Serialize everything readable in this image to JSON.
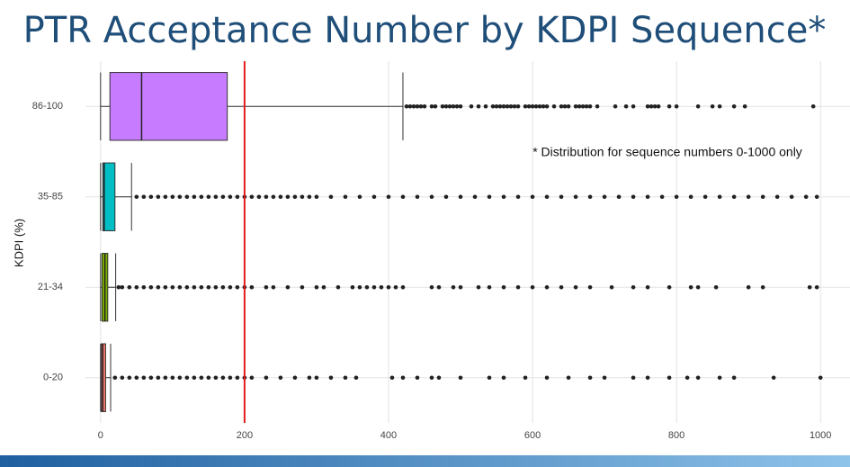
{
  "chart_data": {
    "type": "boxplot",
    "title": "PTR Acceptance Number by KDPI Sequence*",
    "annotation": "* Distribution for sequence numbers 0-1000 only",
    "y_label": "KDPI (%)",
    "categories": [
      "86-100",
      "35-85",
      "21-34",
      "0-20"
    ],
    "colors": [
      "#c77cff",
      "#00bfc4",
      "#7cae00",
      "#f8766d"
    ],
    "boxes": [
      {
        "min": 0,
        "q1": 13,
        "median": 57,
        "q3": 176,
        "max": 420,
        "outliers": [
          425,
          430,
          435,
          440,
          445,
          450,
          460,
          465,
          475,
          480,
          485,
          490,
          495,
          500,
          515,
          525,
          535,
          545,
          550,
          555,
          560,
          565,
          570,
          575,
          580,
          590,
          595,
          600,
          605,
          610,
          615,
          620,
          630,
          640,
          645,
          650,
          660,
          665,
          670,
          675,
          680,
          690,
          715,
          730,
          740,
          760,
          765,
          770,
          775,
          790,
          800,
          830,
          850,
          860,
          880,
          895,
          990
        ]
      },
      {
        "min": 0,
        "q1": 3,
        "median": 5,
        "q3": 20,
        "max": 43,
        "outliers": [
          50,
          60,
          70,
          80,
          90,
          100,
          110,
          120,
          130,
          140,
          150,
          160,
          170,
          180,
          190,
          200,
          210,
          220,
          230,
          240,
          250,
          260,
          270,
          280,
          290,
          300,
          320,
          340,
          360,
          380,
          400,
          420,
          440,
          460,
          480,
          500,
          520,
          540,
          560,
          580,
          600,
          620,
          640,
          660,
          680,
          700,
          720,
          740,
          760,
          780,
          800,
          820,
          840,
          860,
          880,
          900,
          920,
          940,
          960,
          980,
          995
        ]
      },
      {
        "min": 0,
        "q1": 2,
        "median": 6,
        "q3": 10,
        "max": 21,
        "outliers": [
          25,
          30,
          40,
          50,
          60,
          70,
          80,
          90,
          100,
          110,
          120,
          130,
          140,
          150,
          160,
          170,
          180,
          190,
          200,
          210,
          230,
          240,
          260,
          280,
          300,
          310,
          330,
          350,
          360,
          370,
          380,
          390,
          400,
          410,
          420,
          460,
          470,
          490,
          500,
          525,
          540,
          560,
          580,
          600,
          620,
          640,
          660,
          680,
          710,
          740,
          760,
          790,
          820,
          830,
          855,
          900,
          920,
          985,
          995
        ]
      },
      {
        "min": 0,
        "q1": 1,
        "median": 3,
        "q3": 7,
        "max": 14,
        "outliers": [
          20,
          30,
          40,
          50,
          60,
          70,
          80,
          90,
          100,
          110,
          120,
          130,
          140,
          150,
          160,
          170,
          180,
          190,
          200,
          210,
          230,
          250,
          270,
          290,
          300,
          320,
          340,
          355,
          405,
          420,
          440,
          460,
          470,
          500,
          540,
          560,
          590,
          620,
          650,
          680,
          700,
          740,
          760,
          790,
          815,
          830,
          860,
          880,
          935,
          1000
        ]
      }
    ],
    "reference_line": {
      "value": 200,
      "color": "#e41a1c"
    },
    "xlim": [
      -21,
      1041
    ],
    "xticks": [
      0,
      200,
      400,
      600,
      800,
      1000
    ],
    "grid": true
  }
}
